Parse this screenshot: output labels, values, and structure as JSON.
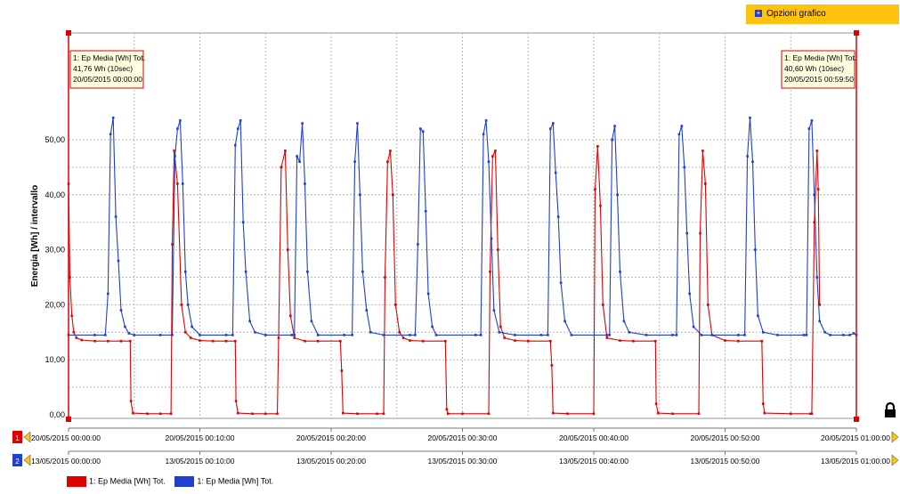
{
  "toolbar": {
    "options_label": "Opzioni grafico"
  },
  "chart_data": {
    "type": "line",
    "ylabel": "Energia [Wh] / intervallo",
    "ylim": [
      0,
      55
    ],
    "yticks": [
      0,
      10,
      20,
      30,
      40,
      50
    ],
    "ytick_labels": [
      "0,00",
      "10,00",
      "20,00",
      "30,00",
      "40,00",
      "50,00"
    ],
    "grid": true,
    "x_minutes": [
      0,
      60
    ],
    "axes": [
      {
        "badge": "1",
        "color": "#e00000",
        "ticks": [
          "20/05/2015 00:00:00",
          "20/05/2015 00:10:00",
          "20/05/2015 00:20:00",
          "20/05/2015 00:30:00",
          "20/05/2015 00:40:00",
          "20/05/2015 00:50:00",
          "20/05/2015 01:00:00"
        ]
      },
      {
        "badge": "2",
        "color": "#1f3fd0",
        "ticks": [
          "13/05/2015 00:00:00",
          "13/05/2015 00:10:00",
          "13/05/2015 00:20:00",
          "13/05/2015 00:30:00",
          "13/05/2015 00:40:00",
          "13/05/2015 00:50:00",
          "13/05/2015 01:00:00"
        ]
      }
    ],
    "series": [
      {
        "name": "1: Ep Media [Wh] Tot.",
        "color": "#e00000",
        "points": [
          [
            0,
            42
          ],
          [
            0.1,
            25
          ],
          [
            0.25,
            18
          ],
          [
            0.4,
            15
          ],
          [
            0.6,
            14
          ],
          [
            1,
            13.6
          ],
          [
            2,
            13.4
          ],
          [
            3,
            13.4
          ],
          [
            4,
            13.4
          ],
          [
            4.7,
            13.4
          ],
          [
            4.75,
            2.5
          ],
          [
            4.9,
            0.3
          ],
          [
            6,
            0.2
          ],
          [
            7,
            0.2
          ],
          [
            7.8,
            0.2
          ],
          [
            7.9,
            31
          ],
          [
            8.05,
            48
          ],
          [
            8.3,
            42
          ],
          [
            8.6,
            20
          ],
          [
            8.9,
            15
          ],
          [
            9.3,
            14
          ],
          [
            10,
            13.5
          ],
          [
            11,
            13.4
          ],
          [
            12,
            13.4
          ],
          [
            12.7,
            13.4
          ],
          [
            12.75,
            2.5
          ],
          [
            12.9,
            0.3
          ],
          [
            14,
            0.2
          ],
          [
            15,
            0.2
          ],
          [
            15.9,
            0.2
          ],
          [
            16,
            14
          ],
          [
            16.2,
            45
          ],
          [
            16.5,
            48
          ],
          [
            16.7,
            30
          ],
          [
            16.9,
            18
          ],
          [
            17.2,
            14
          ],
          [
            18,
            13.4
          ],
          [
            19,
            13.4
          ],
          [
            20.7,
            13.4
          ],
          [
            20.8,
            8
          ],
          [
            20.9,
            0.3
          ],
          [
            22,
            0.2
          ],
          [
            23.5,
            0.2
          ],
          [
            24,
            0.2
          ],
          [
            24.1,
            25
          ],
          [
            24.3,
            46
          ],
          [
            24.5,
            48
          ],
          [
            24.7,
            40
          ],
          [
            24.9,
            20
          ],
          [
            25.2,
            15
          ],
          [
            25.5,
            14
          ],
          [
            26,
            13.5
          ],
          [
            27,
            13.4
          ],
          [
            28.7,
            13.4
          ],
          [
            28.8,
            1
          ],
          [
            28.9,
            0.2
          ],
          [
            30,
            0.2
          ],
          [
            32,
            0.2
          ],
          [
            32.1,
            26
          ],
          [
            32.3,
            47
          ],
          [
            32.5,
            48
          ],
          [
            32.7,
            30
          ],
          [
            32.9,
            16
          ],
          [
            33.2,
            14
          ],
          [
            34,
            13.5
          ],
          [
            35,
            13.4
          ],
          [
            36.7,
            13.4
          ],
          [
            36.8,
            9
          ],
          [
            36.9,
            0.3
          ],
          [
            38,
            0.2
          ],
          [
            40,
            0.2
          ],
          [
            40.1,
            41
          ],
          [
            40.3,
            48.8
          ],
          [
            40.5,
            38
          ],
          [
            40.7,
            20
          ],
          [
            41,
            14
          ],
          [
            42,
            13.5
          ],
          [
            43,
            13.4
          ],
          [
            44.7,
            13.4
          ],
          [
            44.75,
            2
          ],
          [
            44.9,
            0.3
          ],
          [
            46,
            0.2
          ],
          [
            48,
            0.2
          ],
          [
            48.1,
            33
          ],
          [
            48.3,
            48
          ],
          [
            48.5,
            42
          ],
          [
            48.7,
            20
          ],
          [
            49,
            14.5
          ],
          [
            50,
            13.5
          ],
          [
            51,
            13.4
          ],
          [
            52.8,
            13.4
          ],
          [
            52.9,
            2
          ],
          [
            53,
            0.3
          ],
          [
            55,
            0.2
          ],
          [
            56.5,
            0.2
          ],
          [
            56.6,
            0.2
          ],
          [
            56.8,
            35
          ],
          [
            57,
            48
          ],
          [
            57.1,
            41
          ],
          [
            57.2,
            20
          ]
        ]
      },
      {
        "name": "1: Ep Media [Wh] Tot.",
        "color": "#1f3fd0",
        "points": [
          [
            0,
            14.5
          ],
          [
            2,
            14.5
          ],
          [
            2.8,
            14.5
          ],
          [
            3,
            22
          ],
          [
            3.2,
            51
          ],
          [
            3.4,
            54
          ],
          [
            3.6,
            36
          ],
          [
            3.8,
            28
          ],
          [
            4,
            19
          ],
          [
            4.3,
            16
          ],
          [
            4.6,
            14.8
          ],
          [
            5,
            14.5
          ],
          [
            7,
            14.5
          ],
          [
            7.9,
            14.5
          ],
          [
            8.1,
            47
          ],
          [
            8.3,
            52
          ],
          [
            8.5,
            53.5
          ],
          [
            8.7,
            42
          ],
          [
            8.9,
            26
          ],
          [
            9.1,
            20
          ],
          [
            9.4,
            16
          ],
          [
            10,
            14.5
          ],
          [
            12,
            14.5
          ],
          [
            12.5,
            14.5
          ],
          [
            12.7,
            49
          ],
          [
            12.9,
            52
          ],
          [
            13.1,
            53.5
          ],
          [
            13.3,
            35
          ],
          [
            13.5,
            26
          ],
          [
            13.8,
            17
          ],
          [
            14.2,
            15
          ],
          [
            15,
            14.5
          ],
          [
            17,
            14.5
          ],
          [
            17.2,
            14.5
          ],
          [
            17.4,
            47
          ],
          [
            17.6,
            46
          ],
          [
            17.8,
            53
          ],
          [
            18,
            42
          ],
          [
            18.2,
            26
          ],
          [
            18.5,
            17
          ],
          [
            19,
            14.5
          ],
          [
            21,
            14.5
          ],
          [
            21.6,
            14.5
          ],
          [
            21.8,
            46
          ],
          [
            22,
            53
          ],
          [
            22.2,
            40
          ],
          [
            22.4,
            26
          ],
          [
            22.7,
            19
          ],
          [
            23,
            15
          ],
          [
            24,
            14.5
          ],
          [
            26,
            14.5
          ],
          [
            26.4,
            14.5
          ],
          [
            26.6,
            31
          ],
          [
            26.8,
            52
          ],
          [
            27,
            51.5
          ],
          [
            27.2,
            37
          ],
          [
            27.4,
            22
          ],
          [
            27.7,
            16
          ],
          [
            28,
            14.5
          ],
          [
            31,
            14.5
          ],
          [
            31.4,
            14.5
          ],
          [
            31.6,
            51
          ],
          [
            31.8,
            53.5
          ],
          [
            32,
            46
          ],
          [
            32.2,
            32
          ],
          [
            32.4,
            19
          ],
          [
            32.8,
            15
          ],
          [
            34,
            14.5
          ],
          [
            36,
            14.5
          ],
          [
            36.5,
            14.5
          ],
          [
            36.7,
            52
          ],
          [
            36.9,
            53
          ],
          [
            37.1,
            44
          ],
          [
            37.3,
            36
          ],
          [
            37.5,
            24
          ],
          [
            37.8,
            17
          ],
          [
            38.3,
            14.5
          ],
          [
            41,
            14.5
          ],
          [
            41.2,
            14.5
          ],
          [
            41.4,
            50
          ],
          [
            41.6,
            52.5
          ],
          [
            41.8,
            40
          ],
          [
            42,
            26
          ],
          [
            42.3,
            17
          ],
          [
            42.7,
            15
          ],
          [
            44,
            14.5
          ],
          [
            46,
            14.5
          ],
          [
            46.3,
            14.5
          ],
          [
            46.5,
            51
          ],
          [
            46.7,
            52.5
          ],
          [
            46.9,
            45
          ],
          [
            47.1,
            33
          ],
          [
            47.3,
            22
          ],
          [
            47.6,
            16
          ],
          [
            48.2,
            14.5
          ],
          [
            51,
            14.5
          ],
          [
            51.5,
            14.5
          ],
          [
            51.7,
            47
          ],
          [
            51.9,
            54
          ],
          [
            52.1,
            46
          ],
          [
            52.3,
            30
          ],
          [
            52.5,
            18
          ],
          [
            52.9,
            15
          ],
          [
            54,
            14.5
          ],
          [
            56,
            14.5
          ],
          [
            56.2,
            14.5
          ],
          [
            56.4,
            52
          ],
          [
            56.6,
            53.5
          ],
          [
            56.8,
            40
          ],
          [
            57,
            25
          ],
          [
            57.2,
            17
          ],
          [
            57.6,
            15
          ],
          [
            58,
            14.5
          ],
          [
            59,
            14.5
          ],
          [
            59.5,
            14.5
          ],
          [
            59.8,
            14.8
          ],
          [
            60,
            14.5
          ]
        ]
      }
    ],
    "annotations": [
      {
        "lines": [
          "1: Ep Media [Wh] Tot.",
          "41,76 Wh (10sec)",
          "20/05/2015 00:00:00"
        ],
        "x": 0,
        "y": 41.76,
        "anchor": "start"
      },
      {
        "lines": [
          "1: Ep Media [Wh] Tot.",
          "40,60 Wh (10sec)",
          "20/05/2015 00:59:50"
        ],
        "x": 60,
        "y": 40.6,
        "anchor": "end"
      }
    ]
  }
}
